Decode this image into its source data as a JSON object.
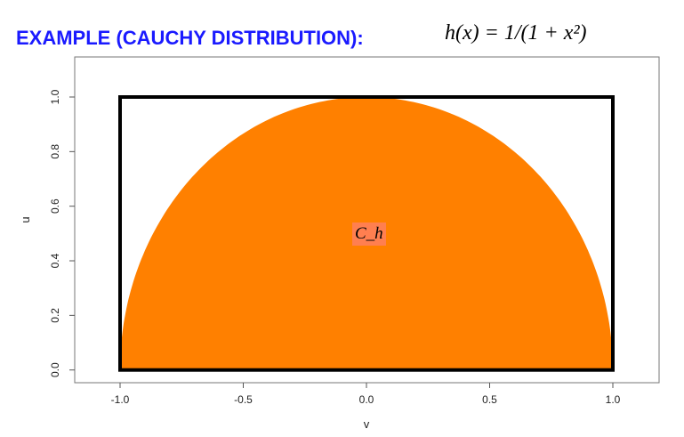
{
  "slide": {
    "title": "EXAMPLE (CAUCHY DISTRIBUTION):",
    "formula": "h(x) = 1/(1 + x²)"
  },
  "chart_data": {
    "type": "area",
    "title": "",
    "xlabel": "v",
    "ylabel": "u",
    "xlim": [
      -1.2,
      1.2
    ],
    "ylim": [
      -0.03,
      1.1
    ],
    "xticks": [
      "-1.0",
      "-0.5",
      "0.0",
      "0.5",
      "1.0"
    ],
    "xtick_values": [
      -1.0,
      -0.5,
      0.0,
      0.5,
      1.0
    ],
    "yticks": [
      "0.0",
      "0.2",
      "0.4",
      "0.6",
      "0.8",
      "1.0"
    ],
    "ytick_values": [
      0.0,
      0.2,
      0.4,
      0.6,
      0.8,
      1.0
    ],
    "region": {
      "label": "C_h",
      "shape": "half-disk u² + v² ≤ 1, u ≥ 0",
      "color": "#ff8000"
    },
    "bounding_rectangle": {
      "v": [
        -1,
        1
      ],
      "u": [
        0,
        1
      ],
      "color": "#000000"
    },
    "grid": false,
    "label_bg_color": "#ff7f50"
  }
}
